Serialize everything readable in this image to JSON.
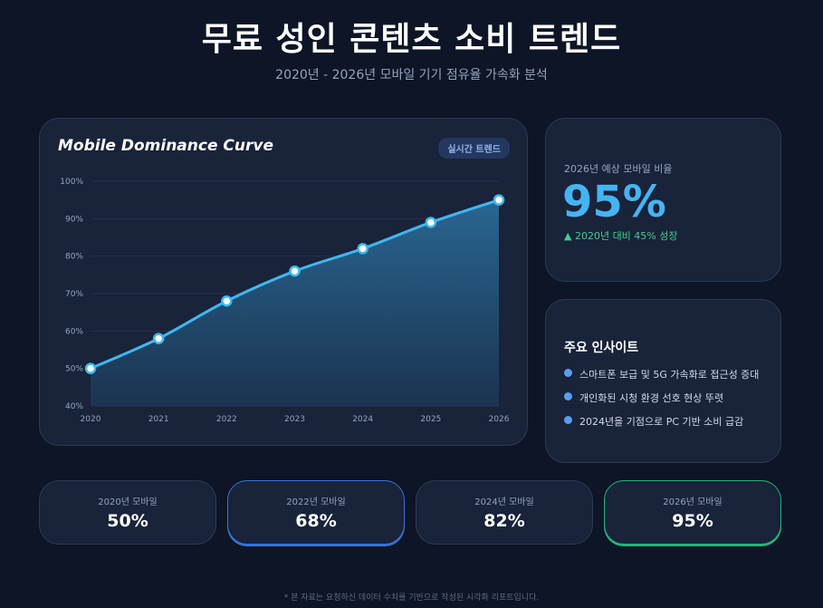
{
  "header": {
    "title": "무료 성인 콘텐츠 소비 트렌드",
    "subtitle": "2020년 - 2026년 모바일 기기 점유율 가속화 분석"
  },
  "chart_card": {
    "title": "Mobile Dominance Curve",
    "badge": "실시간 트렌드"
  },
  "chart_data": {
    "type": "area",
    "title": "Mobile Dominance Curve",
    "x": [
      "2020",
      "2021",
      "2022",
      "2023",
      "2024",
      "2025",
      "2026"
    ],
    "series": [
      {
        "values": [
          50,
          58,
          68,
          76,
          82,
          89,
          95
        ]
      }
    ],
    "ylim": [
      40,
      100
    ],
    "yticks": [
      40,
      50,
      60,
      70,
      80,
      90,
      100
    ],
    "ytick_suffix": "%",
    "grid": true,
    "colors": {
      "line": "#3fb8f0",
      "fill": "#2a6a96"
    }
  },
  "stat": {
    "label": "2026년 예상 모바일 비율",
    "value": "95%",
    "growth": "▲ 2020년 대비 45% 성장"
  },
  "insights": {
    "title": "주요 인사이트",
    "items": [
      "스마트폰 보급 및 5G 가속화로 접근성 증대",
      "개인화된 시청 환경 선호 현상 뚜렷",
      "2024년을 기점으로 PC 기반 소비 급감"
    ]
  },
  "year_cards": [
    {
      "label": "2020년 모바일",
      "value": "50%"
    },
    {
      "label": "2022년 모바일",
      "value": "68%"
    },
    {
      "label": "2024년 모바일",
      "value": "82%"
    },
    {
      "label": "2026년 모바일",
      "value": "95%"
    }
  ],
  "footer": "* 본 자료는 요청하신 데이터 수치를 기반으로 작성된 시각화 리포트입니다."
}
